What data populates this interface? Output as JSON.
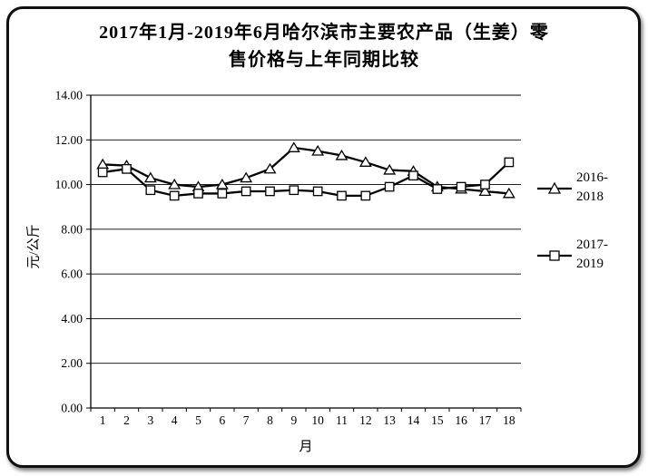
{
  "title": {
    "full": "2017年1月-2019年6月哈尔滨市主要农产品（生姜）零售价格与上年同期比较",
    "line1": "2017年1月-2019年6月哈尔滨市主要农产品（生姜）零",
    "line2": "售价格与上年同期比较"
  },
  "chart_data": {
    "type": "line",
    "x": [
      1,
      2,
      3,
      4,
      5,
      6,
      7,
      8,
      9,
      10,
      11,
      12,
      13,
      14,
      15,
      16,
      17,
      18
    ],
    "series": [
      {
        "name": "2016-2018",
        "marker": "triangle",
        "color": "#000000",
        "values": [
          10.9,
          10.85,
          10.3,
          10.0,
          9.9,
          10.0,
          10.3,
          10.7,
          11.65,
          11.5,
          11.3,
          11.0,
          10.65,
          10.6,
          9.9,
          9.8,
          9.7,
          9.6
        ]
      },
      {
        "name": "2017-2019",
        "marker": "square",
        "color": "#000000",
        "values": [
          10.55,
          10.7,
          9.75,
          9.5,
          9.6,
          9.6,
          9.7,
          9.7,
          9.75,
          9.7,
          9.5,
          9.5,
          9.9,
          10.4,
          9.8,
          9.9,
          10.0,
          11.0
        ]
      }
    ],
    "xlabel": "月",
    "ylabel": "元/公斤",
    "ylim": [
      0,
      14
    ],
    "ytick_step": 2,
    "ytick_format_decimals": 2,
    "grid": true,
    "legend_position": "right"
  },
  "legend": {
    "items": [
      {
        "label": "2016-\n2018",
        "marker": "triangle"
      },
      {
        "label": "2017-\n2019",
        "marker": "square"
      }
    ]
  },
  "colors": {
    "line": "#000000",
    "background": "#ffffff",
    "frame": "#000000"
  }
}
